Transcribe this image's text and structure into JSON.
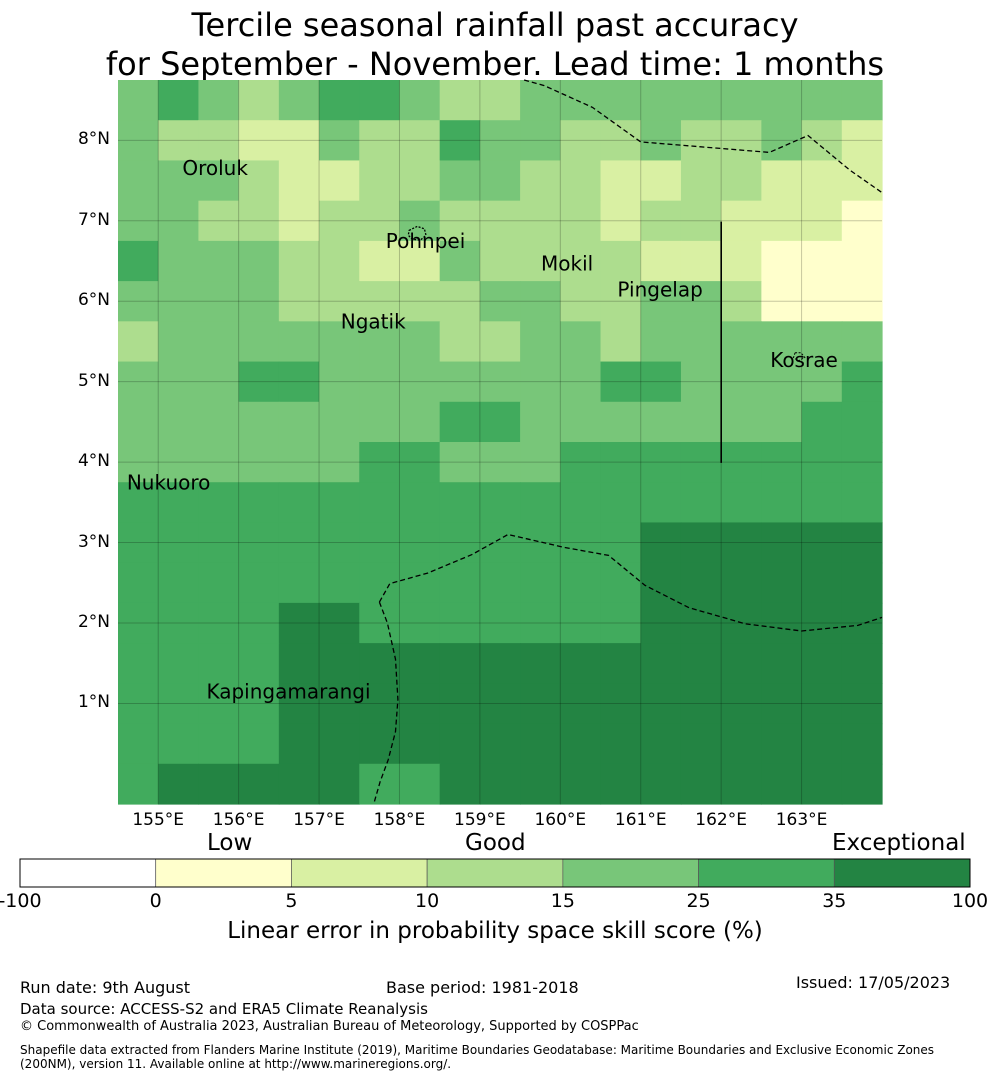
{
  "title_line1": "Tercile seasonal rainfall past accuracy",
  "title_line2": "for September - November. Lead time: 1 months",
  "map": {
    "lon_min": 154.5,
    "lon_max": 164.0,
    "lat_min": -0.25,
    "lat_max": 8.75,
    "lat_ticks": [
      {
        "value": 8,
        "label": "8°N"
      },
      {
        "value": 7,
        "label": "7°N"
      },
      {
        "value": 6,
        "label": "6°N"
      },
      {
        "value": 5,
        "label": "5°N"
      },
      {
        "value": 4,
        "label": "4°N"
      },
      {
        "value": 3,
        "label": "3°N"
      },
      {
        "value": 2,
        "label": "2°N"
      },
      {
        "value": 1,
        "label": "1°N"
      }
    ],
    "lon_ticks": [
      {
        "value": 155,
        "label": "155°E"
      },
      {
        "value": 156,
        "label": "156°E"
      },
      {
        "value": 157,
        "label": "157°E"
      },
      {
        "value": 158,
        "label": "158°E"
      },
      {
        "value": 159,
        "label": "159°E"
      },
      {
        "value": 160,
        "label": "160°E"
      },
      {
        "value": 161,
        "label": "161°E"
      },
      {
        "value": 162,
        "label": "162°E"
      },
      {
        "value": 163,
        "label": "163°E"
      }
    ],
    "grid_levels": [
      [
        3,
        4,
        3,
        2,
        3,
        4,
        4,
        3,
        2,
        2,
        3,
        3,
        3,
        3,
        3,
        3,
        3,
        3,
        3
      ],
      [
        3,
        2,
        2,
        1,
        1,
        3,
        2,
        2,
        4,
        3,
        3,
        2,
        2,
        3,
        2,
        2,
        3,
        2,
        1
      ],
      [
        3,
        3,
        3,
        2,
        1,
        1,
        2,
        2,
        3,
        3,
        2,
        2,
        1,
        1,
        2,
        2,
        1,
        1,
        1
      ],
      [
        3,
        3,
        2,
        2,
        1,
        2,
        2,
        3,
        2,
        2,
        2,
        2,
        1,
        2,
        2,
        1,
        1,
        1,
        0
      ],
      [
        4,
        3,
        3,
        3,
        2,
        2,
        1,
        1,
        3,
        2,
        2,
        2,
        2,
        1,
        1,
        1,
        0,
        0,
        0
      ],
      [
        3,
        3,
        3,
        3,
        2,
        2,
        2,
        2,
        2,
        3,
        3,
        2,
        2,
        3,
        3,
        2,
        0,
        0,
        0
      ],
      [
        2,
        3,
        3,
        3,
        3,
        3,
        3,
        3,
        2,
        2,
        3,
        3,
        2,
        3,
        3,
        3,
        3,
        3,
        3
      ],
      [
        3,
        3,
        3,
        4,
        4,
        3,
        3,
        3,
        3,
        3,
        3,
        3,
        4,
        4,
        3,
        3,
        3,
        3,
        4
      ],
      [
        3,
        3,
        3,
        3,
        3,
        3,
        3,
        3,
        4,
        4,
        3,
        3,
        3,
        3,
        3,
        3,
        3,
        4,
        4
      ],
      [
        3,
        3,
        3,
        3,
        3,
        3,
        4,
        4,
        3,
        3,
        3,
        4,
        4,
        4,
        4,
        4,
        4,
        4,
        4
      ],
      [
        4,
        4,
        4,
        4,
        4,
        4,
        4,
        4,
        4,
        4,
        4,
        4,
        4,
        4,
        4,
        4,
        4,
        4,
        4
      ],
      [
        4,
        4,
        4,
        4,
        4,
        4,
        4,
        4,
        4,
        4,
        4,
        4,
        4,
        5,
        5,
        5,
        5,
        5,
        5
      ],
      [
        4,
        4,
        4,
        4,
        4,
        4,
        4,
        4,
        4,
        4,
        4,
        4,
        4,
        5,
        5,
        5,
        5,
        5,
        5
      ],
      [
        4,
        4,
        4,
        4,
        5,
        5,
        4,
        4,
        4,
        4,
        4,
        4,
        4,
        5,
        5,
        5,
        5,
        5,
        5
      ],
      [
        4,
        4,
        4,
        4,
        5,
        5,
        5,
        5,
        5,
        5,
        5,
        5,
        5,
        5,
        5,
        5,
        5,
        5,
        5
      ],
      [
        4,
        4,
        4,
        4,
        5,
        5,
        5,
        5,
        5,
        5,
        5,
        5,
        5,
        5,
        5,
        5,
        5,
        5,
        5
      ],
      [
        4,
        4,
        4,
        4,
        5,
        5,
        5,
        5,
        5,
        5,
        5,
        5,
        5,
        5,
        5,
        5,
        5,
        5,
        5
      ],
      [
        4,
        5,
        5,
        5,
        5,
        5,
        4,
        4,
        5,
        5,
        5,
        5,
        5,
        5,
        5,
        5,
        5,
        5,
        5
      ]
    ],
    "islands": [
      {
        "name": "Oroluk",
        "lon": 155.3,
        "lat": 7.57
      },
      {
        "name": "Pohnpei",
        "lon": 157.83,
        "lat": 6.66
      },
      {
        "name": "Mokil",
        "lon": 159.76,
        "lat": 6.38
      },
      {
        "name": "Pingelap",
        "lon": 160.71,
        "lat": 6.06
      },
      {
        "name": "Ngatik",
        "lon": 157.27,
        "lat": 5.66
      },
      {
        "name": "Kosrae",
        "lon": 162.61,
        "lat": 5.18
      },
      {
        "name": "Nukuoro",
        "lon": 154.61,
        "lat": 3.66
      },
      {
        "name": "Kapingamarangi",
        "lon": 155.6,
        "lat": 1.06
      }
    ],
    "pohnpei_outline": [
      [
        158.12,
        6.88
      ],
      [
        158.22,
        6.93
      ],
      [
        158.31,
        6.9
      ],
      [
        158.33,
        6.82
      ],
      [
        158.26,
        6.76
      ],
      [
        158.16,
        6.77
      ],
      [
        158.11,
        6.82
      ]
    ],
    "kosrae_outline": [
      [
        162.92,
        5.36
      ],
      [
        162.99,
        5.36
      ],
      [
        163.04,
        5.3
      ],
      [
        162.96,
        5.26
      ],
      [
        162.9,
        5.3
      ]
    ],
    "eez_boundaries": [
      [
        [
          159.55,
          8.75
        ],
        [
          159.8,
          8.68
        ],
        [
          160.4,
          8.41
        ],
        [
          161.0,
          7.98
        ],
        [
          162.6,
          7.85
        ],
        [
          163.08,
          8.06
        ],
        [
          163.6,
          7.63
        ],
        [
          164.0,
          7.35
        ]
      ],
      [
        [
          157.75,
          2.26
        ],
        [
          157.88,
          2.49
        ],
        [
          158.35,
          2.62
        ],
        [
          158.9,
          2.85
        ],
        [
          159.35,
          3.1
        ],
        [
          160.05,
          2.94
        ],
        [
          160.6,
          2.84
        ],
        [
          161.05,
          2.47
        ],
        [
          161.6,
          2.19
        ],
        [
          162.3,
          1.99
        ],
        [
          163.0,
          1.9
        ],
        [
          163.7,
          1.97
        ],
        [
          164.0,
          2.07
        ]
      ],
      [
        [
          157.75,
          2.26
        ],
        [
          157.85,
          2.0
        ],
        [
          157.95,
          1.55
        ],
        [
          157.98,
          1.05
        ],
        [
          157.95,
          0.65
        ],
        [
          157.86,
          0.3
        ],
        [
          157.76,
          0.03
        ],
        [
          157.68,
          -0.25
        ]
      ]
    ],
    "boundary_line": [
      [
        162.0,
        6.99
      ],
      [
        162.0,
        3.99
      ]
    ]
  },
  "legend": {
    "colors": [
      "#ffffff",
      "#ffffcc",
      "#d9f0a3",
      "#addd8e",
      "#78c679",
      "#41ab5d",
      "#238443"
    ],
    "ticks": [
      "-100",
      "0",
      "5",
      "10",
      "15",
      "25",
      "35",
      "100"
    ],
    "category_low": "Low",
    "category_good": "Good",
    "category_exceptional": "Exceptional",
    "title": "Linear error in probability space skill score (%)"
  },
  "footer": {
    "run_date": "Run date: 9th August",
    "base_period": "Base period: 1981-2018",
    "issued": "Issued: 17/05/2023",
    "data_source": "Data source: ACCESS-S2 and ERA5 Climate Reanalysis",
    "copyright": "© Commonwealth of Australia 2023, Australian Bureau of Meteorology, Supported by COSPPac",
    "shapefile_line1": "Shapefile data extracted from Flanders Marine Institute (2019), Maritime Boundaries Geodatabase: Maritime Boundaries and Exclusive Economic Zones",
    "shapefile_line2": "(200NM), version 11. Available online at http://www.marineregions.org/."
  }
}
